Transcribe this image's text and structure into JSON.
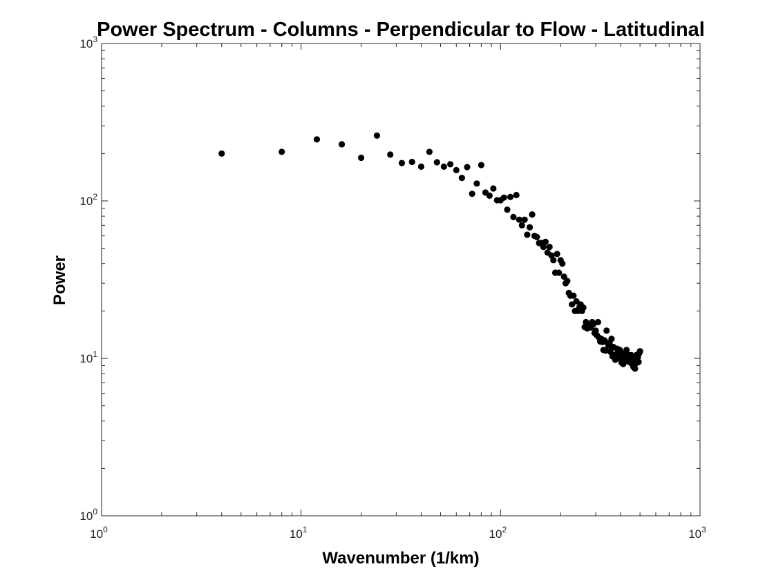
{
  "chart_data": {
    "type": "scatter",
    "title": "Power Spectrum - Columns - Perpendicular to Flow - Latitudinal",
    "xlabel": "Wavenumber (1/km)",
    "ylabel": "Power",
    "xscale": "log",
    "yscale": "log",
    "xlim": [
      1,
      1000
    ],
    "ylim": [
      1,
      1000
    ],
    "grid": false,
    "legend": "none",
    "marker_color": "#000000",
    "x_ticks": [
      {
        "base": "10",
        "exp": "0",
        "value": 1
      },
      {
        "base": "10",
        "exp": "1",
        "value": 10
      },
      {
        "base": "10",
        "exp": "2",
        "value": 100
      },
      {
        "base": "10",
        "exp": "3",
        "value": 1000
      }
    ],
    "y_ticks": [
      {
        "base": "10",
        "exp": "0",
        "value": 1
      },
      {
        "base": "10",
        "exp": "1",
        "value": 10
      },
      {
        "base": "10",
        "exp": "2",
        "value": 100
      },
      {
        "base": "10",
        "exp": "3",
        "value": 1000
      }
    ],
    "points": [
      [
        4,
        200
      ],
      [
        8,
        205
      ],
      [
        12,
        246
      ],
      [
        16,
        229
      ],
      [
        20,
        188
      ],
      [
        24,
        260
      ],
      [
        28,
        197
      ],
      [
        32,
        174
      ],
      [
        36,
        177
      ],
      [
        40,
        165
      ],
      [
        44,
        205
      ],
      [
        48,
        176
      ],
      [
        52,
        165
      ],
      [
        56,
        171
      ],
      [
        60,
        157
      ],
      [
        64,
        140
      ],
      [
        68,
        164
      ],
      [
        72,
        111
      ],
      [
        76,
        129
      ],
      [
        80,
        169
      ],
      [
        84,
        113
      ],
      [
        88,
        108
      ],
      [
        92,
        120
      ],
      [
        96,
        101
      ],
      [
        100,
        101
      ],
      [
        104,
        105
      ],
      [
        108,
        88
      ],
      [
        112,
        106
      ],
      [
        116,
        79
      ],
      [
        120,
        109
      ],
      [
        124,
        76
      ],
      [
        128,
        70
      ],
      [
        132,
        76
      ],
      [
        136,
        61
      ],
      [
        140,
        68
      ],
      [
        144,
        82
      ],
      [
        148,
        60
      ],
      [
        152,
        59
      ],
      [
        156,
        54
      ],
      [
        160,
        54
      ],
      [
        164,
        51
      ],
      [
        168,
        55
      ],
      [
        172,
        47
      ],
      [
        176,
        51
      ],
      [
        180,
        45
      ],
      [
        184,
        42
      ],
      [
        188,
        35
      ],
      [
        192,
        46
      ],
      [
        196,
        35
      ],
      [
        200,
        42
      ],
      [
        204,
        40
      ],
      [
        208,
        33
      ],
      [
        212,
        30
      ],
      [
        216,
        31
      ],
      [
        220,
        26
      ],
      [
        224,
        25
      ],
      [
        228,
        22
      ],
      [
        232,
        25
      ],
      [
        236,
        20
      ],
      [
        240,
        23
      ],
      [
        244,
        20
      ],
      [
        248,
        21
      ],
      [
        252,
        22
      ],
      [
        256,
        20
      ],
      [
        260,
        21
      ],
      [
        264,
        15.8
      ],
      [
        268,
        17
      ],
      [
        272,
        15.5
      ],
      [
        276,
        16
      ],
      [
        280,
        16
      ],
      [
        284,
        15.7
      ],
      [
        288,
        17
      ],
      [
        292,
        16.5
      ],
      [
        296,
        14.5
      ],
      [
        300,
        15
      ],
      [
        304,
        14
      ],
      [
        308,
        17
      ],
      [
        312,
        13.5
      ],
      [
        316,
        12.8
      ],
      [
        320,
        13.3
      ],
      [
        324,
        12.7
      ],
      [
        328,
        11.3
      ],
      [
        332,
        13
      ],
      [
        336,
        11.2
      ],
      [
        340,
        15
      ],
      [
        344,
        12.5
      ],
      [
        348,
        12
      ],
      [
        352,
        12.5
      ],
      [
        356,
        11
      ],
      [
        360,
        13.3
      ],
      [
        364,
        10.3
      ],
      [
        368,
        11.8
      ],
      [
        372,
        10.5
      ],
      [
        376,
        9.8
      ],
      [
        380,
        10
      ],
      [
        384,
        11.5
      ],
      [
        388,
        11
      ],
      [
        392,
        10.7
      ],
      [
        396,
        11.3
      ],
      [
        400,
        10
      ],
      [
        404,
        9.4
      ],
      [
        408,
        10.5
      ],
      [
        412,
        9.2
      ],
      [
        416,
        10
      ],
      [
        420,
        10.8
      ],
      [
        424,
        9.7
      ],
      [
        428,
        11.3
      ],
      [
        432,
        10.6
      ],
      [
        436,
        9.8
      ],
      [
        440,
        9.5
      ],
      [
        444,
        10.2
      ],
      [
        448,
        9.8
      ],
      [
        452,
        10.5
      ],
      [
        456,
        9.2
      ],
      [
        460,
        10.3
      ],
      [
        464,
        8.8
      ],
      [
        468,
        9.9
      ],
      [
        472,
        8.6
      ],
      [
        476,
        9.3
      ],
      [
        480,
        10.5
      ],
      [
        484,
        9.4
      ],
      [
        488,
        10.2
      ],
      [
        492,
        9.5
      ],
      [
        496,
        10.8
      ],
      [
        500,
        11.1
      ]
    ]
  }
}
